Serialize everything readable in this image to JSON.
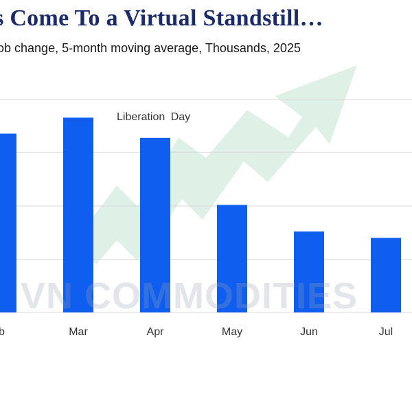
{
  "header": {
    "title": "s Come To a Virtual Standstill…",
    "subtitle": "ob change, 5-month moving average, Thousands, 2025"
  },
  "watermark": {
    "text": "VN COMMODITIES"
  },
  "colors": {
    "bar": "#0f5ef0",
    "grid": "#d9d9d9",
    "title": "#1b2a6b"
  },
  "chart_data": {
    "type": "bar",
    "title": "s Come To a Virtual Standstill…",
    "subtitle": "ob change, 5-month moving average, Thousands, 2025",
    "categories": [
      "eb",
      "Mar",
      "Apr",
      "May",
      "Jun",
      "Jul"
    ],
    "values": [
      168,
      183,
      164,
      101,
      76,
      70
    ],
    "ylim": [
      0,
      200
    ],
    "grid": true,
    "annotations": [
      {
        "text": "Liberation  Day",
        "near": "Apr"
      }
    ]
  }
}
